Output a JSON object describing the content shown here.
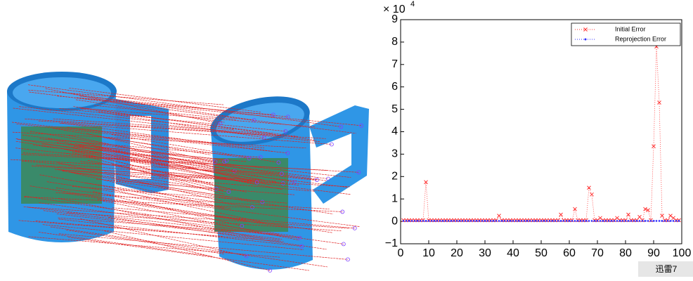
{
  "chart_data": {
    "type": "scatter",
    "axis_multiplier": {
      "base": "× 10",
      "exponent": "4"
    },
    "x": [
      1,
      2,
      3,
      4,
      5,
      6,
      7,
      8,
      9,
      10,
      11,
      12,
      13,
      14,
      15,
      16,
      17,
      18,
      19,
      20,
      21,
      22,
      23,
      24,
      25,
      26,
      27,
      28,
      29,
      30,
      31,
      32,
      33,
      34,
      35,
      36,
      37,
      38,
      39,
      40,
      41,
      42,
      43,
      44,
      45,
      46,
      47,
      48,
      49,
      50,
      51,
      52,
      53,
      54,
      55,
      56,
      57,
      58,
      59,
      60,
      61,
      62,
      63,
      64,
      65,
      66,
      67,
      68,
      69,
      70,
      71,
      72,
      73,
      74,
      75,
      76,
      77,
      78,
      79,
      80,
      81,
      82,
      83,
      84,
      85,
      86,
      87,
      88,
      89,
      90,
      91,
      92,
      93,
      94,
      95,
      96,
      97,
      98,
      99
    ],
    "series": [
      {
        "name": "Initial Error",
        "color": "#ff3030",
        "marker": "x",
        "values": [
          0.05,
          0.05,
          0.05,
          0.05,
          0.05,
          0.05,
          0.05,
          0.05,
          1.75,
          0.05,
          0.05,
          0.05,
          0.05,
          0.05,
          0.05,
          0.05,
          0.05,
          0.05,
          0.05,
          0.05,
          0.05,
          0.05,
          0.05,
          0.05,
          0.05,
          0.05,
          0.05,
          0.05,
          0.05,
          0.05,
          0.05,
          0.05,
          0.05,
          0.05,
          0.25,
          0.05,
          0.05,
          0.05,
          0.05,
          0.05,
          0.05,
          0.05,
          0.05,
          0.05,
          0.05,
          0.05,
          0.05,
          0.05,
          0.05,
          0.05,
          0.05,
          0.05,
          0.05,
          0.05,
          0.05,
          0.05,
          0.3,
          0.05,
          0.05,
          0.05,
          0.05,
          0.55,
          0.05,
          0.05,
          0.05,
          0.05,
          1.5,
          1.2,
          0.05,
          0.05,
          0.15,
          0.05,
          0.05,
          0.05,
          0.05,
          0.05,
          0.15,
          0.05,
          0.05,
          0.05,
          0.3,
          0.05,
          0.05,
          0.05,
          0.2,
          0.05,
          0.55,
          0.5,
          0.05,
          3.35,
          7.8,
          5.3,
          0.25,
          0.05,
          0.05,
          0.25,
          0.15,
          0.05,
          0.05
        ]
      },
      {
        "name": "Reprojection Error",
        "color": "#3030ff",
        "marker": "dot",
        "values": [
          0.02,
          0.02,
          0.02,
          0.02,
          0.02,
          0.02,
          0.02,
          0.02,
          0.02,
          0.02,
          0.02,
          0.02,
          0.02,
          0.02,
          0.02,
          0.02,
          0.02,
          0.02,
          0.02,
          0.02,
          0.02,
          0.02,
          0.02,
          0.02,
          0.02,
          0.02,
          0.02,
          0.02,
          0.02,
          0.02,
          0.02,
          0.02,
          0.02,
          0.02,
          0.02,
          0.02,
          0.02,
          0.02,
          0.02,
          0.02,
          0.02,
          0.02,
          0.02,
          0.02,
          0.02,
          0.02,
          0.02,
          0.02,
          0.02,
          0.02,
          0.02,
          0.02,
          0.02,
          0.02,
          0.02,
          0.02,
          0.02,
          0.02,
          0.02,
          0.02,
          0.02,
          0.02,
          0.02,
          0.02,
          0.02,
          0.02,
          0.02,
          0.02,
          0.02,
          0.02,
          0.02,
          0.02,
          0.02,
          0.02,
          0.02,
          0.02,
          0.02,
          0.02,
          0.02,
          0.02,
          0.02,
          0.02,
          0.02,
          0.02,
          0.02,
          0.02,
          0.02,
          0.02,
          0.02,
          0.02,
          0.02,
          0.02,
          0.02,
          0.02,
          0.02,
          0.02,
          0.02,
          0.02,
          0.02
        ]
      }
    ],
    "xlim": [
      0,
      100
    ],
    "xticks": [
      0,
      10,
      20,
      30,
      40,
      50,
      60,
      70,
      80,
      90,
      100
    ],
    "ylim": [
      -1,
      9
    ],
    "yticks": [
      {
        "value": -1,
        "label": "−1"
      },
      0,
      1,
      2,
      3,
      4,
      5,
      6,
      7,
      8,
      9
    ],
    "legend": "upper right",
    "line_style": "dotted"
  },
  "watermark": "迅雷7"
}
